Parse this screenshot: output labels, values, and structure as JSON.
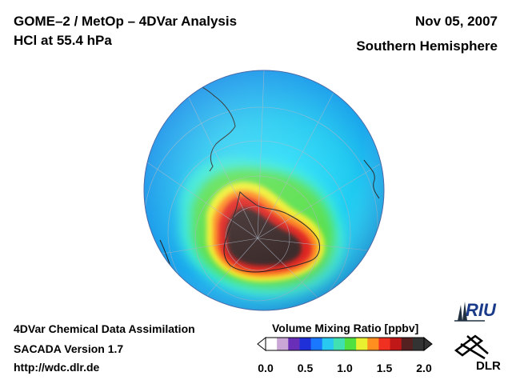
{
  "title": {
    "line1": "GOME–2 / MetOp – 4DVar Analysis",
    "line2": "HCl at 55.4 hPa"
  },
  "date": "Nov 05, 2007",
  "hemisphere": "Southern Hemisphere",
  "footer": {
    "line1": "4DVar Chemical Data Assimilation",
    "line2": "SACADA Version 1.7",
    "line3": "http://wdc.dlr.de"
  },
  "colorbar": {
    "title": "Volume Mixing Ratio [ppbv]",
    "ticks": [
      "0.0",
      "0.5",
      "1.0",
      "1.5",
      "2.0"
    ],
    "range": [
      0.0,
      2.0
    ],
    "colors": [
      "#ffffff",
      "#c9a6d6",
      "#6a2fb8",
      "#2030d8",
      "#1a78ff",
      "#28c8f0",
      "#40e0b0",
      "#50e040",
      "#e8f030",
      "#ff9020",
      "#f03020",
      "#c01818",
      "#552020",
      "#333333"
    ]
  },
  "logos": {
    "riu": "RIU",
    "dlr": "DLR"
  },
  "map": {
    "projection": "orthographic-south-polar",
    "field": "HCl volume mixing ratio",
    "max_region": "Antarctica (polar vortex)"
  }
}
